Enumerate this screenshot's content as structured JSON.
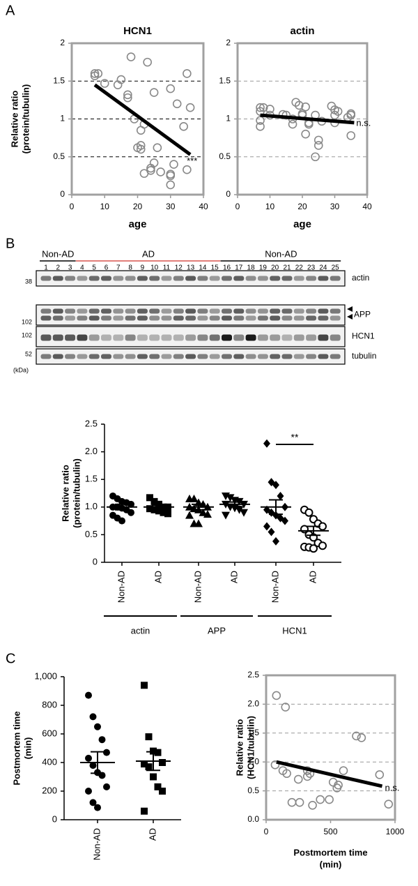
{
  "panel_labels": [
    "A",
    "B",
    "C"
  ],
  "blot": {
    "groups": [
      {
        "label": "Non-AD",
        "color": "#000000",
        "lanes": [
          "1",
          "2",
          "3"
        ]
      },
      {
        "label": "AD",
        "color": "#d9534f",
        "lanes": [
          "4",
          "5",
          "6",
          "7",
          "8",
          "9",
          "10",
          "11",
          "12",
          "13",
          "14",
          "15"
        ]
      },
      {
        "label": "Non-AD",
        "color": "#000000",
        "lanes": [
          "16",
          "17",
          "18",
          "19",
          "20",
          "21",
          "22",
          "23",
          "24",
          "25"
        ]
      }
    ],
    "bands": [
      "actin",
      "APP",
      "HCN1",
      "tubulin"
    ],
    "markers": [
      "38",
      "102",
      "102",
      "52"
    ],
    "unit": "(kDa)"
  },
  "chart_data": [
    {
      "type": "scatter",
      "title": "HCN1",
      "xlabel": "age",
      "ylabel": [
        "Relative ratio",
        "(protein/tubulin)"
      ],
      "xlim": [
        0,
        40
      ],
      "xticks": [
        0,
        10,
        20,
        30,
        40
      ],
      "ylim": [
        0,
        2
      ],
      "yticks": [
        0,
        0.5,
        1,
        1.5,
        2
      ],
      "grid": true,
      "grid_color": "#000000",
      "frame": true,
      "color": "#888888",
      "x": [
        7,
        7,
        8,
        10,
        14,
        15,
        17,
        17,
        18,
        19,
        20,
        21,
        21,
        22,
        21,
        22,
        23,
        24,
        24,
        25,
        25,
        26,
        27,
        30,
        30,
        30,
        30,
        31,
        32,
        34,
        35,
        36,
        35
      ],
      "y": [
        1.57,
        1.6,
        1.6,
        1.47,
        1.45,
        1.52,
        1.32,
        1.28,
        1.82,
        1.0,
        0.62,
        0.65,
        0.6,
        0.28,
        0.85,
        0.93,
        1.75,
        0.35,
        0.32,
        1.35,
        0.42,
        0.62,
        0.3,
        0.27,
        0.25,
        1.4,
        0.13,
        0.4,
        1.2,
        0.9,
        1.6,
        1.15,
        0.33
      ],
      "fit": {
        "x": [
          7,
          36
        ],
        "y": [
          1.45,
          0.53
        ]
      },
      "annotation": "***"
    },
    {
      "type": "scatter",
      "title": "actin",
      "xlabel": "age",
      "xlim": [
        0,
        40
      ],
      "xticks": [
        0,
        10,
        20,
        30,
        40
      ],
      "ylim": [
        0,
        2
      ],
      "yticks": [
        0,
        0.5,
        1,
        1.5,
        2
      ],
      "grid": true,
      "grid_color": "#999999",
      "frame": true,
      "color": "#888888",
      "x": [
        7,
        7,
        7,
        7,
        8,
        10,
        10,
        14,
        15,
        17,
        17,
        18,
        19,
        20,
        20,
        21,
        21,
        22,
        22,
        24,
        24,
        25,
        25,
        26,
        29,
        30,
        30,
        30,
        31,
        34,
        35,
        35,
        35
      ],
      "y": [
        1.15,
        1.1,
        0.98,
        0.9,
        1.15,
        1.13,
        1.05,
        1.06,
        1.05,
        1.0,
        0.93,
        1.22,
        1.18,
        1.07,
        1.05,
        1.16,
        0.8,
        0.95,
        0.93,
        0.5,
        1.05,
        0.65,
        0.72,
        0.97,
        1.17,
        1.12,
        1.05,
        0.95,
        1.1,
        1.02,
        1.07,
        1.05,
        0.78
      ],
      "fit": {
        "x": [
          7,
          36
        ],
        "y": [
          1.05,
          0.95
        ]
      },
      "annotation": "n.s."
    },
    {
      "type": "dotplot",
      "ylabel": [
        "Relative ratio",
        "(protein/tubulin)"
      ],
      "ylim": [
        0,
        2.5
      ],
      "yticks": [
        0,
        0.5,
        {
          "value": 1,
          "label": "1.0"
        },
        1.5,
        {
          "value": 2,
          "label": "2.0"
        },
        2.5
      ],
      "categories": [
        "Non-AD",
        "AD",
        "Non-AD",
        "AD",
        "Non-AD",
        "AD"
      ],
      "groups": [
        "actin",
        "APP",
        "HCN1"
      ],
      "markers": [
        "circle",
        "square",
        "triangle",
        "triangle-down",
        "diamond",
        "open-circle"
      ],
      "points": [
        [
          1.2,
          1.15,
          1.1,
          1.08,
          1.05,
          1.0,
          1.0,
          0.98,
          0.95,
          0.9,
          0.85,
          0.8,
          0.75
        ],
        [
          1.17,
          1.1,
          1.05,
          1.0,
          1.0,
          0.97,
          0.95,
          0.93,
          0.9,
          0.88
        ],
        [
          1.15,
          1.15,
          1.08,
          1.05,
          1.0,
          1.0,
          0.97,
          0.95,
          0.9,
          0.87,
          0.85,
          0.7,
          0.7
        ],
        [
          1.2,
          1.17,
          1.12,
          1.1,
          1.05,
          1.05,
          1.0,
          0.98,
          0.95,
          0.9,
          0.85
        ],
        [
          2.15,
          1.45,
          1.4,
          1.2,
          1.0,
          0.95,
          0.9,
          0.85,
          0.8,
          0.75,
          0.65,
          0.55,
          0.38
        ],
        [
          0.95,
          0.9,
          0.78,
          0.7,
          0.65,
          0.6,
          0.5,
          0.45,
          0.35,
          0.3,
          0.28,
          0.27,
          0.25
        ]
      ],
      "means": [
        1.0,
        1.0,
        1.0,
        1.05,
        1.0,
        0.57
      ],
      "errors": [
        0.05,
        0.03,
        0.05,
        0.04,
        0.13,
        0.08
      ],
      "annotation": "**"
    },
    {
      "type": "dotplot",
      "ylabel": [
        "Postmortem time",
        "(min)"
      ],
      "ylim": [
        0,
        1000
      ],
      "yticks": [
        0,
        200,
        400,
        600,
        800,
        {
          "value": 1000,
          "label": "1,000"
        }
      ],
      "categories": [
        "Non-AD",
        "AD"
      ],
      "markers": [
        "circle",
        "square"
      ],
      "points": [
        [
          870,
          720,
          650,
          560,
          470,
          430,
          380,
          330,
          310,
          230,
          200,
          120,
          85
        ],
        [
          940,
          580,
          480,
          470,
          400,
          390,
          370,
          300,
          230,
          200,
          60
        ]
      ],
      "means": [
        400,
        410
      ],
      "errors": [
        75,
        65
      ]
    },
    {
      "type": "scatter",
      "xlabel": [
        "Postmortem time",
        "(min)"
      ],
      "ylabel": [
        "Relative ratio",
        "(HCN1/tubulin)"
      ],
      "xlim": [
        0,
        1000
      ],
      "xticks": [
        0,
        500,
        1000
      ],
      "ylim": [
        0,
        2.5
      ],
      "yticks": [
        {
          "value": 0,
          "label": "0.0"
        },
        0.5,
        {
          "value": 1,
          "label": "1.0"
        },
        1.5,
        {
          "value": 2,
          "label": "2.0"
        },
        2.5
      ],
      "grid": true,
      "grid_color": "#999999",
      "frame": true,
      "color": "#888888",
      "x": [
        80,
        150,
        70,
        130,
        160,
        200,
        260,
        250,
        320,
        320,
        340,
        360,
        420,
        490,
        520,
        550,
        560,
        600,
        700,
        740,
        880,
        950
      ],
      "y": [
        2.15,
        1.95,
        0.95,
        0.85,
        0.8,
        0.3,
        0.3,
        0.7,
        0.85,
        0.75,
        0.8,
        0.25,
        0.35,
        0.35,
        0.65,
        0.55,
        0.6,
        0.85,
        1.45,
        1.42,
        0.78,
        0.27
      ],
      "fit": {
        "x": [
          80,
          900
        ],
        "y": [
          1.0,
          0.58
        ]
      },
      "annotation": "n.s."
    }
  ]
}
